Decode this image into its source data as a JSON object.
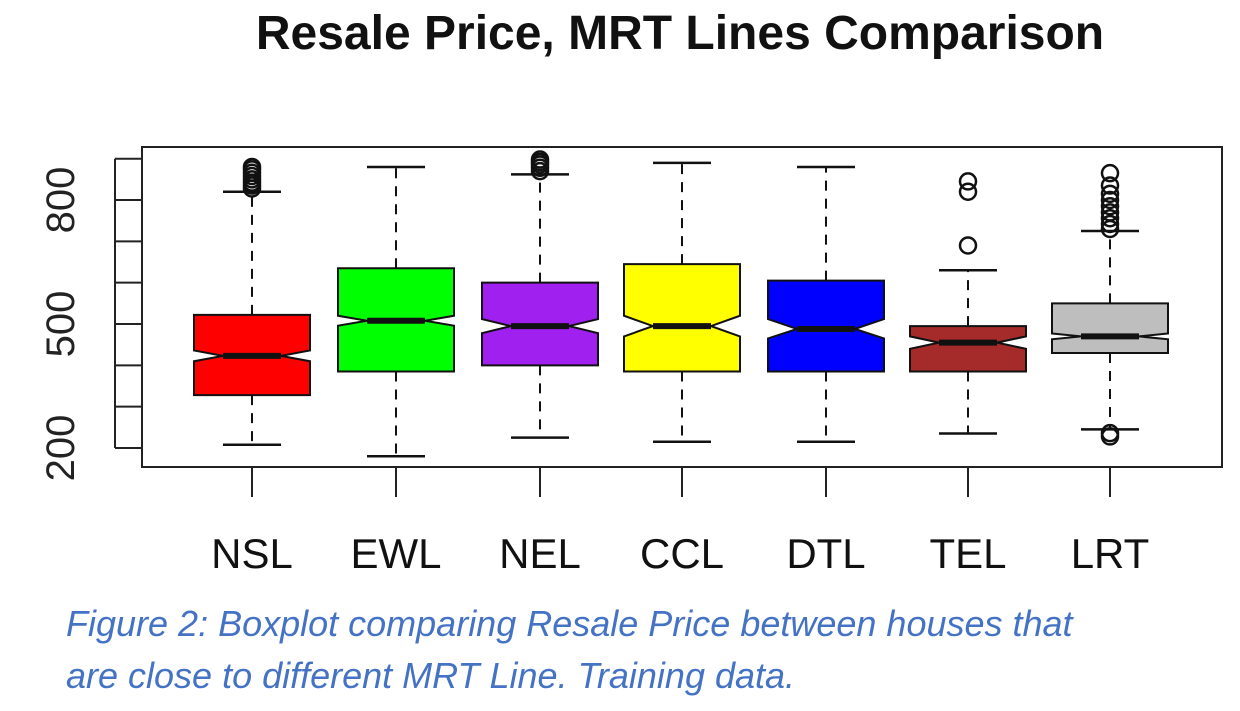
{
  "chart_data": {
    "type": "boxplot",
    "title": "Resale Price, MRT Lines Comparison",
    "xlabel": "",
    "ylabel": "",
    "notched": true,
    "grid": false,
    "ylim": [
      180,
      950
    ],
    "yticks": [
      200,
      300,
      400,
      500,
      600,
      700,
      800,
      900
    ],
    "ytick_labels": [
      "200",
      "",
      "",
      "500",
      "",
      "",
      "800",
      ""
    ],
    "categories": [
      "NSL",
      "EWL",
      "NEL",
      "CCL",
      "DTL",
      "TEL",
      "LRT"
    ],
    "series": [
      {
        "category": "NSL",
        "color": "#ff0000",
        "whisker_low": 208,
        "q1": 328,
        "median": 423,
        "q3": 522,
        "whisker_high": 820,
        "notch_low": 410,
        "notch_high": 436,
        "outliers": [
          828,
          835,
          842,
          850,
          858,
          866,
          874,
          880
        ]
      },
      {
        "category": "EWL",
        "color": "#00ff00",
        "whisker_low": 180,
        "q1": 385,
        "median": 508,
        "q3": 635,
        "whisker_high": 880,
        "notch_low": 496,
        "notch_high": 520,
        "outliers": []
      },
      {
        "category": "NEL",
        "color": "#a020f0",
        "whisker_low": 225,
        "q1": 400,
        "median": 495,
        "q3": 600,
        "whisker_high": 862,
        "notch_low": 478,
        "notch_high": 512,
        "outliers": [
          870,
          878,
          886,
          892,
          898
        ]
      },
      {
        "category": "CCL",
        "color": "#ffff00",
        "whisker_low": 215,
        "q1": 385,
        "median": 495,
        "q3": 645,
        "whisker_high": 890,
        "notch_low": 470,
        "notch_high": 520,
        "outliers": []
      },
      {
        "category": "DTL",
        "color": "#0000ff",
        "whisker_low": 215,
        "q1": 385,
        "median": 488,
        "q3": 605,
        "whisker_high": 880,
        "notch_low": 465,
        "notch_high": 512,
        "outliers": []
      },
      {
        "category": "TEL",
        "color": "#a52a2a",
        "whisker_low": 235,
        "q1": 385,
        "median": 455,
        "q3": 495,
        "whisker_high": 630,
        "notch_low": 440,
        "notch_high": 470,
        "outliers": [
          690,
          820,
          845
        ]
      },
      {
        "category": "LRT",
        "color": "#bebebe",
        "whisker_low": 245,
        "q1": 430,
        "median": 470,
        "q3": 550,
        "whisker_high": 725,
        "notch_low": 463,
        "notch_high": 477,
        "outliers": [
          228,
          236,
          730,
          742,
          756,
          770,
          785,
          800,
          815,
          835,
          865
        ]
      }
    ]
  },
  "caption": {
    "line1": "Figure 2: Boxplot comparing Resale Price between houses that",
    "line2": "are close to different MRT Line. Training data."
  }
}
